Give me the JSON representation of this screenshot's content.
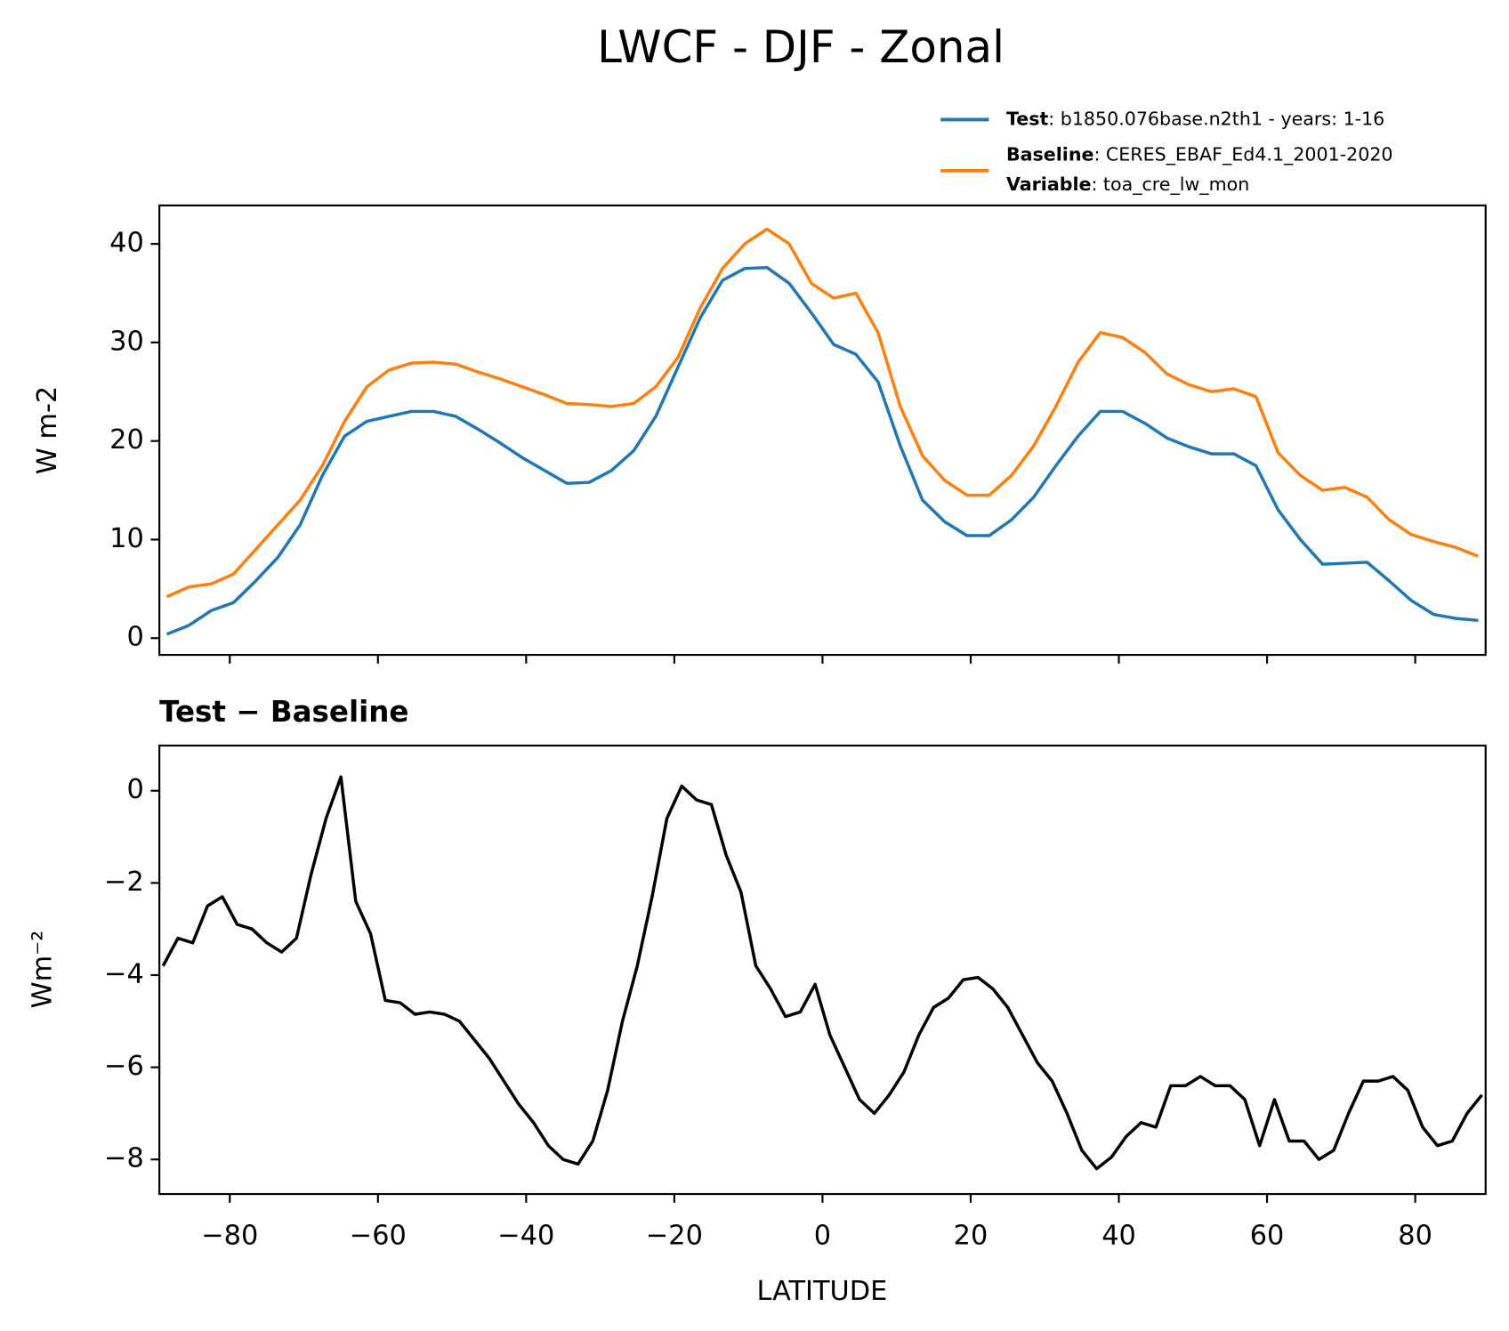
{
  "chart_data": [
    {
      "type": "line",
      "title": "LWCF - DJF - Zonal",
      "ylabel": "W m-2",
      "xlim": [
        -89.5,
        89.5
      ],
      "ylim": [
        -1.7,
        43.9
      ],
      "xticks": [
        -80,
        -60,
        -40,
        -20,
        0,
        20,
        40,
        60,
        80
      ],
      "xticklabels": false,
      "yticks": [
        0,
        10,
        20,
        30,
        40
      ],
      "legend": "upper right",
      "legend_extra": {
        "name": "Variable",
        "detail": ": toa_cre_lw_mon"
      },
      "x": [
        -88.5,
        -85.5,
        -82.5,
        -79.5,
        -76.5,
        -73.5,
        -70.5,
        -67.5,
        -64.5,
        -61.5,
        -58.5,
        -55.5,
        -52.5,
        -49.5,
        -46.5,
        -43.5,
        -40.5,
        -37.5,
        -34.5,
        -31.5,
        -28.5,
        -25.5,
        -22.5,
        -19.5,
        -16.5,
        -13.5,
        -10.5,
        -7.5,
        -4.5,
        -1.5,
        1.5,
        4.5,
        7.5,
        10.5,
        13.5,
        16.5,
        19.5,
        22.5,
        25.5,
        28.5,
        31.5,
        34.5,
        37.5,
        40.5,
        43.5,
        46.5,
        49.5,
        52.5,
        55.5,
        58.5,
        61.5,
        64.5,
        67.5,
        70.5,
        73.5,
        76.5,
        79.5,
        82.5,
        85.5,
        88.5
      ],
      "series": [
        {
          "name": "Test",
          "detail": ": b1850.076base.n2th1 - years: 1-16",
          "color": "#1f77b4",
          "values": [
            0.4,
            1.3,
            2.8,
            3.6,
            5.8,
            8.2,
            11.5,
            16.5,
            20.5,
            22.0,
            22.5,
            23.0,
            23.0,
            22.5,
            21.2,
            19.8,
            18.3,
            17.0,
            15.7,
            15.8,
            17.0,
            19.0,
            22.5,
            27.5,
            32.5,
            36.3,
            37.5,
            37.6,
            36.0,
            33.0,
            29.8,
            28.8,
            26.0,
            19.5,
            14.0,
            11.8,
            10.4,
            10.4,
            12.0,
            14.3,
            17.5,
            20.5,
            23.0,
            23.0,
            21.8,
            20.3,
            19.4,
            18.7,
            18.7,
            17.5,
            13.0,
            10.0,
            7.5,
            7.6,
            7.7,
            5.8,
            3.8,
            2.4,
            2.0,
            1.8
          ]
        },
        {
          "name": "Baseline",
          "detail": ": CERES_EBAF_Ed4.1_2001-2020",
          "color": "#ff7f0e",
          "values": [
            4.2,
            5.2,
            5.5,
            6.5,
            9.0,
            11.5,
            14.0,
            17.5,
            22.0,
            25.5,
            27.2,
            27.9,
            28.0,
            27.8,
            27.0,
            26.3,
            25.5,
            24.7,
            23.8,
            23.7,
            23.5,
            23.8,
            25.5,
            28.5,
            33.5,
            37.5,
            40.0,
            41.5,
            40.0,
            36.0,
            34.5,
            35.0,
            31.0,
            23.5,
            18.5,
            16.0,
            14.5,
            14.5,
            16.5,
            19.5,
            23.5,
            28.0,
            31.0,
            30.5,
            29.0,
            26.8,
            25.7,
            25.0,
            25.3,
            24.5,
            18.8,
            16.5,
            15.0,
            15.3,
            14.3,
            12.0,
            10.5,
            9.8,
            9.2,
            8.3
          ]
        }
      ]
    },
    {
      "type": "line",
      "title": "Test − Baseline",
      "ylabel": "Wm⁻²",
      "xlabel": "LATITUDE",
      "xlim": [
        -89.5,
        89.5
      ],
      "ylim": [
        -8.75,
        0.98
      ],
      "xticks": [
        {
          "value": -80,
          "label": "−80"
        },
        {
          "value": -60,
          "label": "−60"
        },
        {
          "value": -40,
          "label": "−40"
        },
        {
          "value": -20,
          "label": "−20"
        },
        0,
        20,
        40,
        60,
        80
      ],
      "yticks": [
        {
          "value": -8,
          "label": "−8"
        },
        {
          "value": -6,
          "label": "−6"
        },
        {
          "value": -4,
          "label": "−4"
        },
        {
          "value": -2,
          "label": "−2"
        },
        0
      ],
      "x": [
        -89,
        -87,
        -85,
        -83,
        -81,
        -79,
        -77,
        -75,
        -73,
        -71,
        -69,
        -67,
        -65,
        -63,
        -61,
        -59,
        -57,
        -55,
        -53,
        -51,
        -49,
        -47,
        -45,
        -43,
        -41,
        -39,
        -37,
        -35,
        -33,
        -31,
        -29,
        -27,
        -25,
        -23,
        -21,
        -19,
        -17,
        -15,
        -13,
        -11,
        -9,
        -7,
        -5,
        -3,
        -1,
        1,
        3,
        5,
        7,
        9,
        11,
        13,
        15,
        17,
        19,
        21,
        23,
        25,
        27,
        29,
        31,
        33,
        35,
        37,
        39,
        41,
        43,
        45,
        47,
        49,
        51,
        53,
        55,
        57,
        59,
        61,
        63,
        65,
        67,
        69,
        71,
        73,
        75,
        77,
        79,
        81,
        83,
        85,
        87,
        89
      ],
      "series": [
        {
          "color": "#000000",
          "values": [
            -3.8,
            -3.2,
            -3.3,
            -2.5,
            -2.3,
            -2.9,
            -3.0,
            -3.3,
            -3.5,
            -3.2,
            -1.8,
            -0.6,
            0.3,
            -2.4,
            -3.1,
            -4.55,
            -4.6,
            -4.85,
            -4.8,
            -4.85,
            -5.0,
            -5.4,
            -5.8,
            -6.3,
            -6.8,
            -7.2,
            -7.7,
            -8.0,
            -8.1,
            -7.6,
            -6.5,
            -5.0,
            -3.8,
            -2.3,
            -0.6,
            0.1,
            -0.2,
            -0.3,
            -1.4,
            -2.2,
            -3.8,
            -4.3,
            -4.9,
            -4.8,
            -4.2,
            -5.3,
            -6.0,
            -6.7,
            -7.0,
            -6.6,
            -6.1,
            -5.3,
            -4.7,
            -4.5,
            -4.1,
            -4.05,
            -4.3,
            -4.7,
            -5.3,
            -5.9,
            -6.3,
            -7.0,
            -7.8,
            -8.2,
            -7.95,
            -7.5,
            -7.2,
            -7.3,
            -6.4,
            -6.4,
            -6.2,
            -6.4,
            -6.4,
            -6.7,
            -7.7,
            -6.7,
            -7.6,
            -7.6,
            -8.0,
            -7.8,
            -7.0,
            -6.3,
            -6.3,
            -6.2,
            -6.5,
            -7.3,
            -7.7,
            -7.6,
            -7.0,
            -6.6
          ]
        }
      ]
    }
  ]
}
